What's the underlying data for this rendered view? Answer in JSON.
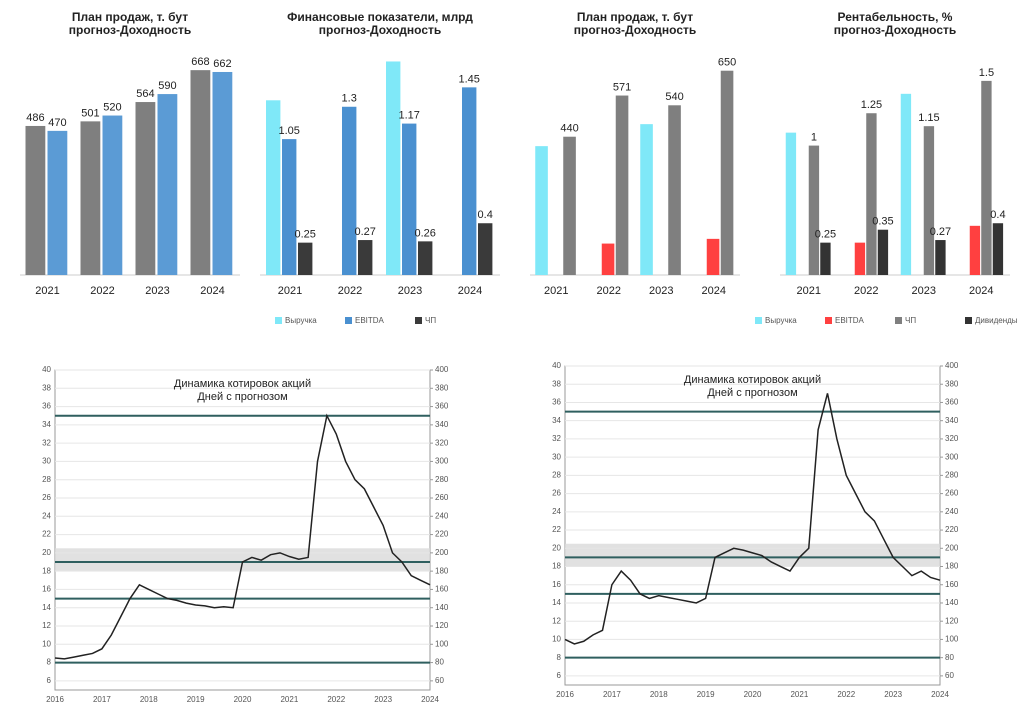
{
  "chart_data": [
    {
      "type": "bar",
      "title": "План продаж, т. бут",
      "subtitle": "прогноз-Доходность",
      "categories": [
        "2021",
        "2022",
        "2023",
        "2024"
      ],
      "series": [
        {
          "color": "#7f7f7f",
          "values": [
            486,
            501,
            564,
            668
          ],
          "labels": true
        },
        {
          "color": "#5b9bd5",
          "values": [
            470,
            520,
            590,
            662
          ],
          "labels": true
        }
      ],
      "ylim": [
        0,
        750
      ]
    },
    {
      "type": "bar",
      "title": "Финансовые показатели, млрд",
      "subtitle": "прогноз-Доходность",
      "categories": [
        "2021",
        "2022",
        "2023",
        "2024"
      ],
      "series": [
        {
          "name": "Выручка",
          "color": "#7fe8f8",
          "values": [
            1.35,
            0,
            1.65,
            0
          ],
          "labels": false
        },
        {
          "name": "EBITDA",
          "color": "#4a90d0",
          "values": [
            1.05,
            1.3,
            1.17,
            1.45
          ],
          "labels": true
        },
        {
          "name": "ЧП",
          "color": "#3a3a3a",
          "values": [
            0.25,
            0.27,
            0.26,
            0.4
          ],
          "labels": true
        }
      ],
      "ylim": [
        0,
        1.7
      ],
      "legend": "bottom"
    },
    {
      "type": "bar",
      "title": "План продаж, т. бут",
      "subtitle": "прогноз-Доходность",
      "categories": [
        "2021",
        "2022",
        "2023",
        "2024"
      ],
      "series": [
        {
          "color": "#7fe8f8",
          "values": [
            410,
            0,
            480,
            0
          ],
          "labels": false
        },
        {
          "color": "#ff4040",
          "values": [
            0,
            100,
            0,
            115
          ],
          "labels": false
        },
        {
          "color": "#7f7f7f",
          "values": [
            440,
            571,
            540,
            650
          ],
          "labels": true
        }
      ],
      "ylim": [
        0,
        700
      ]
    },
    {
      "type": "bar",
      "title": "Рентабельность, %",
      "subtitle": "прогноз-Доходность",
      "categories": [
        "2021",
        "2022",
        "2023",
        "2024"
      ],
      "series": [
        {
          "name": "Выручка",
          "color": "#7fe8f8",
          "values": [
            1.1,
            0,
            1.4,
            0
          ],
          "labels": false
        },
        {
          "name": "EBITDA",
          "color": "#ff4040",
          "values": [
            0,
            0.25,
            0,
            0.38
          ],
          "labels": false
        },
        {
          "name": "ЧП",
          "color": "#7f7f7f",
          "values": [
            1.0,
            1.25,
            1.15,
            1.5
          ],
          "labels": true
        },
        {
          "name": "Дивиденды",
          "color": "#333333",
          "values": [
            0.25,
            0.35,
            0.27,
            0.4
          ],
          "labels": true
        }
      ],
      "ylim": [
        0,
        1.7
      ],
      "legend": "bottom"
    },
    {
      "type": "line",
      "title": "Динамика котировок акций",
      "subtitle": "Дней с прогнозом",
      "categories": [
        "2016",
        null,
        null,
        null,
        null,
        "2017",
        null,
        null,
        null,
        null,
        "2018",
        null,
        null,
        null,
        null,
        "2019",
        null,
        null,
        null,
        null,
        "2020",
        null,
        null,
        null,
        null,
        "2021",
        null,
        null,
        null,
        null,
        "2022",
        null,
        null,
        null,
        null,
        "2023",
        null,
        null,
        null,
        null,
        "2024"
      ],
      "series": [
        {
          "color": "#222222",
          "axis": "y2",
          "values": [
            85,
            84,
            86,
            88,
            90,
            95,
            110,
            130,
            150,
            165,
            160,
            155,
            150,
            148,
            145,
            143,
            142,
            140,
            141,
            140,
            190,
            195,
            192,
            198,
            200,
            196,
            193,
            195,
            300,
            350,
            330,
            300,
            280,
            270,
            250,
            230,
            200,
            190,
            175,
            170,
            165
          ]
        }
      ],
      "ylim": [
        5,
        40
      ],
      "yticks": [
        6,
        8,
        10,
        12,
        14,
        16,
        18,
        20,
        22,
        24,
        26,
        28,
        30,
        32,
        34,
        36,
        38,
        40
      ],
      "y2lim": [
        50,
        400
      ],
      "y2ticks": [
        60,
        80,
        100,
        120,
        140,
        160,
        180,
        200,
        220,
        240,
        260,
        280,
        300,
        320,
        340,
        360,
        380,
        400
      ],
      "hlines": [
        350,
        190,
        150,
        80
      ],
      "band": [
        180,
        205
      ],
      "grid": true
    },
    {
      "type": "line",
      "title": "Динамика котировок акций",
      "subtitle": "Дней с прогнозом",
      "categories": [
        "2016",
        null,
        null,
        null,
        null,
        "2017",
        null,
        null,
        null,
        null,
        "2018",
        null,
        null,
        null,
        null,
        "2019",
        null,
        null,
        null,
        null,
        "2020",
        null,
        null,
        null,
        null,
        "2021",
        null,
        null,
        null,
        null,
        "2022",
        null,
        null,
        null,
        null,
        "2023",
        null,
        null,
        null,
        null,
        "2024"
      ],
      "series": [
        {
          "color": "#222222",
          "axis": "y2",
          "values": [
            100,
            95,
            98,
            105,
            110,
            160,
            175,
            165,
            150,
            145,
            148,
            146,
            144,
            142,
            140,
            145,
            190,
            195,
            200,
            198,
            195,
            192,
            185,
            180,
            175,
            190,
            200,
            330,
            370,
            320,
            280,
            260,
            240,
            230,
            210,
            190,
            180,
            170,
            175,
            168,
            165
          ]
        }
      ],
      "ylim": [
        5,
        40
      ],
      "yticks": [
        6,
        8,
        10,
        12,
        14,
        16,
        18,
        20,
        22,
        24,
        26,
        28,
        30,
        32,
        34,
        36,
        38,
        40
      ],
      "y2lim": [
        50,
        400
      ],
      "y2ticks": [
        60,
        80,
        100,
        120,
        140,
        160,
        180,
        200,
        220,
        240,
        260,
        280,
        300,
        320,
        340,
        360,
        380,
        400
      ],
      "hlines": [
        350,
        190,
        150,
        80
      ],
      "band": [
        180,
        205
      ],
      "grid": true
    }
  ]
}
